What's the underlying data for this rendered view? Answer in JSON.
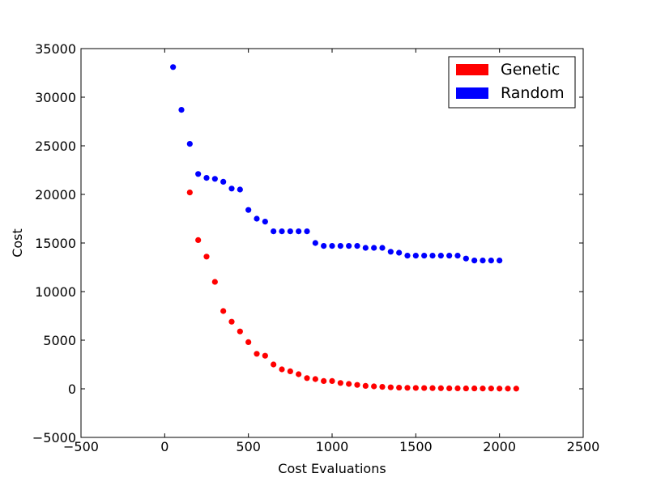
{
  "chart_data": {
    "type": "scatter",
    "xlabel": "Cost Evaluations",
    "ylabel": "Cost",
    "xlim": [
      -500,
      2500
    ],
    "ylim": [
      -5000,
      35000
    ],
    "x_ticks": [
      -500,
      0,
      500,
      1000,
      1500,
      2000,
      2500
    ],
    "y_ticks": [
      -5000,
      0,
      5000,
      10000,
      15000,
      20000,
      25000,
      30000,
      35000
    ],
    "x_tick_labels": [
      "−500",
      "0",
      "500",
      "1000",
      "1500",
      "2000",
      "2500"
    ],
    "y_tick_labels": [
      "−5000",
      "0",
      "5000",
      "10000",
      "15000",
      "20000",
      "25000",
      "30000",
      "35000"
    ],
    "grid": false,
    "legend_position": "top-right",
    "series": [
      {
        "name": "Genetic",
        "color": "#ff0000",
        "x": [
          150,
          200,
          250,
          300,
          350,
          400,
          450,
          500,
          550,
          600,
          650,
          700,
          750,
          800,
          850,
          900,
          950,
          1000,
          1050,
          1100,
          1150,
          1200,
          1250,
          1300,
          1350,
          1400,
          1450,
          1500,
          1550,
          1600,
          1650,
          1700,
          1750,
          1800,
          1850,
          1900,
          1950,
          2000,
          2050,
          2100
        ],
        "y": [
          20200,
          15300,
          13600,
          11000,
          8000,
          6900,
          5900,
          4800,
          3600,
          3400,
          2500,
          2000,
          1800,
          1500,
          1100,
          1000,
          800,
          800,
          600,
          500,
          400,
          300,
          250,
          200,
          150,
          120,
          100,
          90,
          80,
          70,
          60,
          50,
          50,
          40,
          40,
          30,
          30,
          20,
          20,
          20
        ]
      },
      {
        "name": "Random",
        "color": "#0000ff",
        "x": [
          50,
          100,
          150,
          200,
          250,
          300,
          350,
          400,
          450,
          500,
          550,
          600,
          650,
          700,
          750,
          800,
          850,
          900,
          950,
          1000,
          1050,
          1100,
          1150,
          1200,
          1250,
          1300,
          1350,
          1400,
          1450,
          1500,
          1550,
          1600,
          1650,
          1700,
          1750,
          1800,
          1850,
          1900,
          1950,
          2000
        ],
        "y": [
          33100,
          28700,
          25200,
          22100,
          21700,
          21600,
          21300,
          20600,
          20500,
          18400,
          17500,
          17200,
          16200,
          16200,
          16200,
          16200,
          16200,
          15000,
          14700,
          14700,
          14700,
          14700,
          14700,
          14500,
          14500,
          14500,
          14100,
          14000,
          13700,
          13700,
          13700,
          13700,
          13700,
          13700,
          13700,
          13400,
          13200,
          13200,
          13200,
          13200
        ]
      }
    ]
  }
}
